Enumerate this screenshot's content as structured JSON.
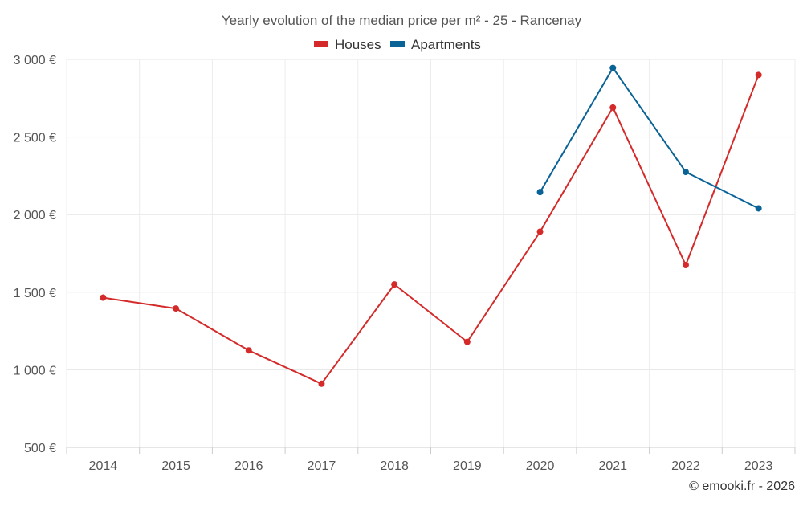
{
  "chart_data": {
    "type": "line",
    "title": "Yearly evolution of the median price per m² - 25 - Rancenay",
    "categories": [
      "2014",
      "2015",
      "2016",
      "2017",
      "2018",
      "2019",
      "2020",
      "2021",
      "2022",
      "2023"
    ],
    "series": [
      {
        "name": "Houses",
        "color": "#d42a2a",
        "values": [
          1465,
          1395,
          1125,
          910,
          1550,
          1180,
          1890,
          2690,
          1675,
          2900
        ]
      },
      {
        "name": "Apartments",
        "color": "#0a6396",
        "values": [
          null,
          null,
          null,
          null,
          null,
          null,
          2145,
          2945,
          2275,
          2040
        ]
      }
    ],
    "yticks": [
      500,
      1000,
      1500,
      2000,
      2500,
      3000
    ],
    "ytick_labels": [
      "500 €",
      "1 000 €",
      "1 500 €",
      "2 000 €",
      "2 500 €",
      "3 000 €"
    ],
    "ylim": [
      500,
      3000
    ],
    "xlabel": "",
    "ylabel": "",
    "grid": true,
    "legend": "top-center",
    "footer": "© emooki.fr - 2026"
  }
}
